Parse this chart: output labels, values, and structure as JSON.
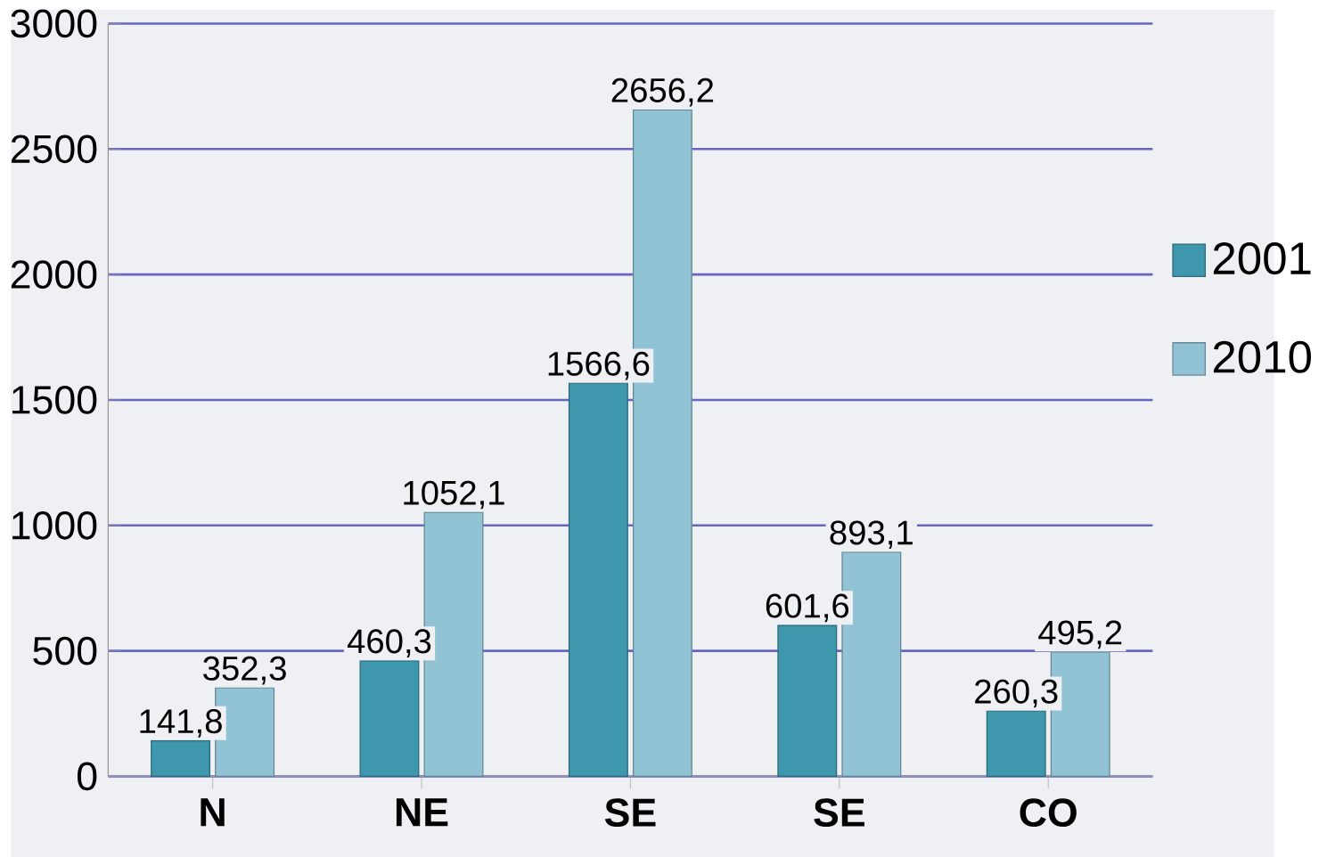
{
  "chart_data": {
    "type": "bar",
    "categories": [
      "N",
      "NE",
      "SE",
      "SE",
      "CO"
    ],
    "series": [
      {
        "name": "2001",
        "color": "#3f97ae",
        "values": [
          141.8,
          460.3,
          1566.6,
          601.6,
          260.3
        ],
        "value_labels": [
          "141,8",
          "460,3",
          "1566,6",
          "601,6",
          "260,3"
        ]
      },
      {
        "name": "2010",
        "color": "#92c3d4",
        "values": [
          352.3,
          1052.1,
          2656.2,
          893.1,
          495.2
        ],
        "value_labels": [
          "352,3",
          "1052,1",
          "2656,2",
          "893,1",
          "495,2"
        ]
      }
    ],
    "ylim": [
      0,
      3000
    ],
    "yticks": [
      0,
      500,
      1000,
      1500,
      2000,
      2500,
      3000
    ],
    "grid": "y",
    "legend": "right"
  }
}
